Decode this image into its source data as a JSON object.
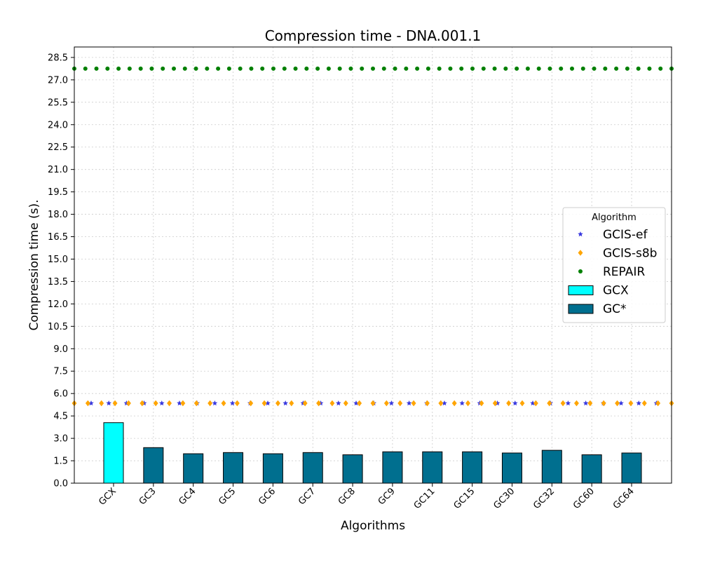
{
  "chart_data": {
    "type": "bar",
    "title": "Compression time -  DNA.001.1",
    "xlabel": "Algorithms",
    "ylabel": "Compression time (s).",
    "ylim": [
      0,
      29.2
    ],
    "yticks": [
      "0.0",
      "1.5",
      "3.0",
      "4.5",
      "6.0",
      "7.5",
      "9.0",
      "10.5",
      "12.0",
      "13.5",
      "15.0",
      "16.5",
      "18.0",
      "19.5",
      "21.0",
      "22.5",
      "24.0",
      "25.5",
      "27.0",
      "28.5"
    ],
    "categories": [
      "GCX",
      "GC3",
      "GC4",
      "GC5",
      "GC6",
      "GC7",
      "GC8",
      "GC9",
      "GC11",
      "GC15",
      "GC30",
      "GC32",
      "GC60",
      "GC64"
    ],
    "grid": true,
    "legend_position": "center-right",
    "series": [
      {
        "name": "GCX",
        "kind": "bar",
        "color": "#00ffff",
        "values": [
          4.05,
          null,
          null,
          null,
          null,
          null,
          null,
          null,
          null,
          null,
          null,
          null,
          null,
          null
        ]
      },
      {
        "name": "GC*",
        "kind": "bar",
        "color": "#006f8f",
        "values": [
          null,
          2.38,
          1.97,
          2.05,
          1.97,
          2.05,
          1.9,
          2.1,
          2.1,
          2.1,
          2.02,
          2.2,
          1.9,
          2.02
        ]
      },
      {
        "name": "GCIS-ef",
        "kind": "reference-line",
        "marker": "star",
        "color": "#3a3adf",
        "value": 5.35
      },
      {
        "name": "GCIS-s8b",
        "kind": "reference-line",
        "marker": "diamond",
        "color": "#ffa500",
        "value": 5.35
      },
      {
        "name": "REPAIR",
        "kind": "reference-line",
        "marker": "circle",
        "color": "#008000",
        "value": 27.75
      }
    ],
    "legend": {
      "title": "Algorithm",
      "entries": [
        {
          "label": "GCIS-ef",
          "marker": "star",
          "color": "#3a3adf"
        },
        {
          "label": "GCIS-s8b",
          "marker": "diamond",
          "color": "#ffa500"
        },
        {
          "label": "REPAIR",
          "marker": "circle",
          "color": "#008000"
        },
        {
          "label": "GCX",
          "marker": "rect",
          "color": "#00ffff"
        },
        {
          "label": "GC*",
          "marker": "rect",
          "color": "#006f8f"
        }
      ]
    }
  }
}
